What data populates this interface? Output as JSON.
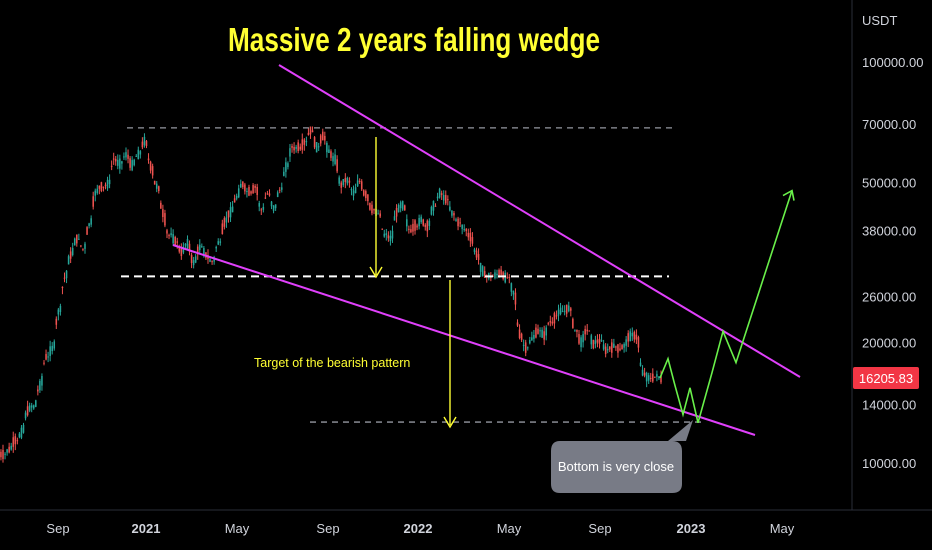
{
  "chart_data": {
    "type": "candlestick",
    "title": "Massive 2 years falling wedge",
    "currency_label": "USDT",
    "y_scale": "log",
    "y_ticks": [
      10000,
      14000,
      20000,
      26000,
      38000,
      50000,
      70000,
      100000
    ],
    "y_tick_labels": [
      "10000.00",
      "14000.00",
      "20000.00",
      "26000.00",
      "38000.00",
      "50000.00",
      "70000.00",
      "100000.00"
    ],
    "x_ticks": [
      "Sep",
      "2021",
      "May",
      "Sep",
      "2022",
      "May",
      "Sep",
      "2023",
      "May"
    ],
    "x_tick_bold": [
      false,
      true,
      false,
      false,
      true,
      false,
      false,
      true,
      false
    ],
    "last_price": "16205.83",
    "annotations": {
      "target_text": "Target of the bearish pattern",
      "callout_text": "Bottom is very close"
    },
    "price_path_weekly_close": [
      10500,
      10800,
      11400,
      11900,
      13500,
      13800,
      15600,
      18400,
      19300,
      23800,
      28900,
      33000,
      36200,
      34200,
      39300,
      47100,
      48900,
      49600,
      57300,
      55800,
      58700,
      55300,
      58800,
      63500,
      55000,
      49000,
      42000,
      37000,
      35700,
      33500,
      35200,
      31600,
      34500,
      33000,
      31800,
      35400,
      39800,
      42200,
      46000,
      49500,
      47600,
      48800,
      42800,
      47000,
      43200,
      48000,
      54700,
      61400,
      61500,
      63100,
      67500,
      61300,
      65400,
      59900,
      57200,
      49300,
      50600,
      47100,
      50400,
      46700,
      43000,
      41900,
      37000,
      36300,
      42200,
      43900,
      38300,
      39100,
      40500,
      39000,
      43800,
      47100,
      45500,
      42000,
      39800,
      38300,
      36600,
      33200,
      30100,
      29300,
      29400,
      29900,
      29100,
      26600,
      21000,
      19400,
      20400,
      21300,
      20800,
      22500,
      23300,
      23900,
      24300,
      21500,
      20000,
      21400,
      19800,
      20100,
      19100,
      19400,
      19300,
      19600,
      20700,
      20600,
      16800,
      16300,
      16400,
      16200
    ],
    "levels": {
      "top_dashed": 68500,
      "neckline_dashed": 29200,
      "target_dashed": 12650
    },
    "projection_path": [
      16300,
      18200,
      15600,
      13200,
      15400,
      12600,
      16800,
      21300,
      17800,
      47800
    ]
  }
}
